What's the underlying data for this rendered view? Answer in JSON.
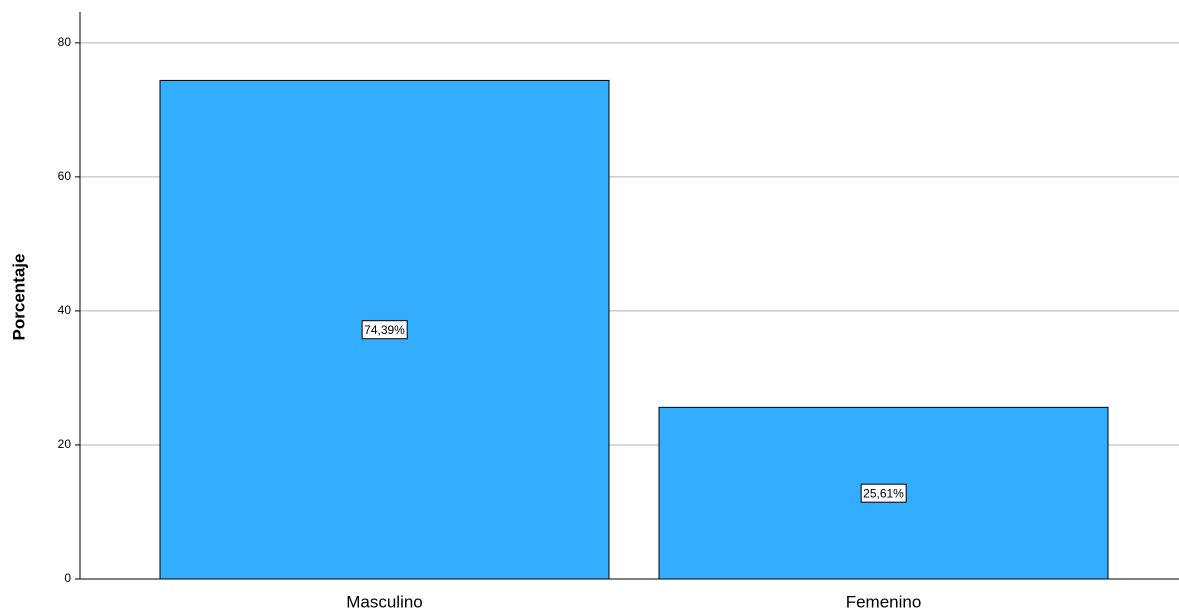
{
  "chart_data": {
    "type": "bar",
    "y_label": "Porcentaje",
    "categories": [
      "Masculino",
      "Femenino"
    ],
    "values": [
      74.39,
      25.61
    ],
    "value_labels": [
      "74,39%",
      "25,61%"
    ],
    "color": "#33adff",
    "ylim": [
      0,
      84.6
    ],
    "yticks": [
      0,
      20,
      40,
      60,
      80
    ],
    "grid": true
  }
}
